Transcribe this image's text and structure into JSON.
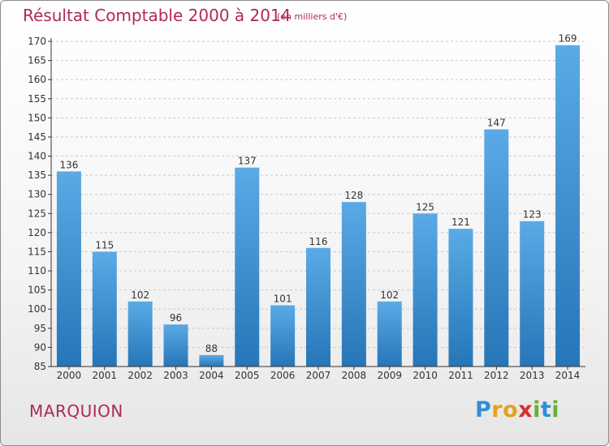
{
  "header": {
    "title": "Résultat Comptable 2000 à 2014",
    "subtitle": "(en milliers d'€)"
  },
  "footer": {
    "commune": "MARQUION",
    "logo_letters": [
      "P",
      "r",
      "o",
      "x",
      "i",
      "t",
      "i"
    ],
    "logo_colors": [
      "#2f8fd8",
      "#e8a020",
      "#e8a020",
      "#d8302a",
      "#6ab030",
      "#2f8fd8",
      "#6ab030"
    ]
  },
  "colors": {
    "bar_light": "#5aaae6",
    "bar_dark": "#2676b8",
    "axis": "#333333",
    "grid": "#c8c8c8"
  },
  "chart_data": {
    "type": "bar",
    "title": "Résultat Comptable 2000 à 2014",
    "subtitle": "(en milliers d'€)",
    "xlabel": "",
    "ylabel": "",
    "ylim": [
      85,
      170
    ],
    "ytick_step": 5,
    "grid": true,
    "categories": [
      "2000",
      "2001",
      "2002",
      "2003",
      "2004",
      "2005",
      "2006",
      "2007",
      "2008",
      "2009",
      "2010",
      "2011",
      "2012",
      "2013",
      "2014"
    ],
    "values": [
      136,
      115,
      102,
      96,
      88,
      137,
      101,
      116,
      128,
      102,
      125,
      121,
      147,
      123,
      169
    ]
  }
}
